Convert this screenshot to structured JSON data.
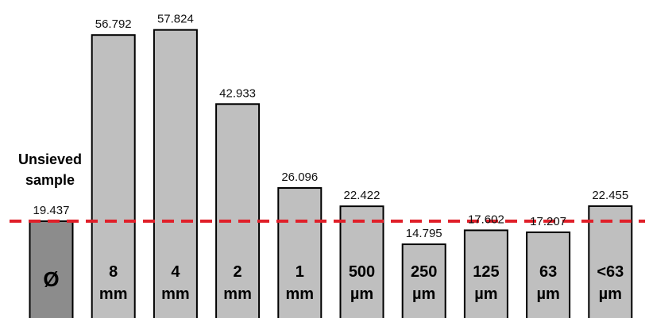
{
  "chart_data": {
    "type": "bar",
    "categories": [
      "Ø",
      "8 mm",
      "4 mm",
      "2 mm",
      "1 mm",
      "500 µm",
      "250 µm",
      "125 µm",
      "63 µm",
      "<63 µm"
    ],
    "category_lines": [
      [
        "Ø"
      ],
      [
        "8",
        "mm"
      ],
      [
        "4",
        "mm"
      ],
      [
        "2",
        "mm"
      ],
      [
        "1",
        "mm"
      ],
      [
        "500",
        "µm"
      ],
      [
        "250",
        "µm"
      ],
      [
        "125",
        "µm"
      ],
      [
        "63",
        "µm"
      ],
      [
        "<63",
        "µm"
      ]
    ],
    "values": [
      19.437,
      56.792,
      57.824,
      42.933,
      26.096,
      22.422,
      14.795,
      17.602,
      17.207,
      22.455
    ],
    "value_labels": [
      "19.437",
      "56.792",
      "57.824",
      "42.933",
      "26.096",
      "22.422",
      "14.795",
      "17.602",
      "17.207",
      "22.455"
    ],
    "reference_line": {
      "value": 19.437,
      "style": "dashed",
      "color": "#e0202a"
    },
    "annotation": [
      "Unsieved",
      "sample"
    ],
    "ylim": [
      0,
      60
    ],
    "grid": false,
    "colors": {
      "bar": "#bfbfbf",
      "first_bar": "#8c8c8c",
      "edge": "#000000"
    }
  }
}
